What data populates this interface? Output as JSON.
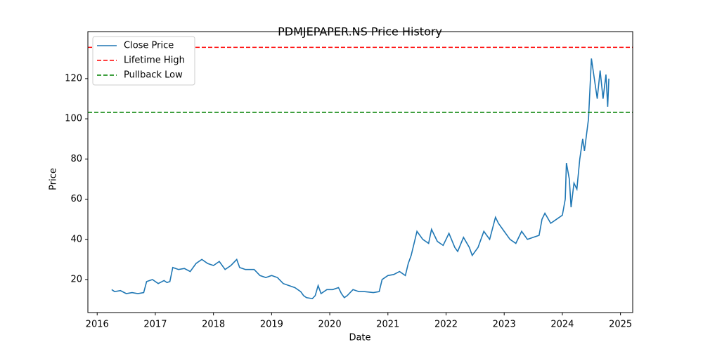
{
  "chart_data": {
    "type": "line",
    "title": "PDMJEPAPER.NS Price History",
    "x_label": "Date",
    "y_label": "Price",
    "x": [
      2016.25,
      2016.3,
      2016.4,
      2016.5,
      2016.6,
      2016.7,
      2016.8,
      2016.85,
      2016.95,
      2017.05,
      2017.15,
      2017.2,
      2017.25,
      2017.3,
      2017.4,
      2017.5,
      2017.6,
      2017.7,
      2017.8,
      2017.9,
      2018.0,
      2018.1,
      2018.2,
      2018.3,
      2018.4,
      2018.45,
      2018.55,
      2018.7,
      2018.8,
      2018.9,
      2019.0,
      2019.1,
      2019.2,
      2019.3,
      2019.4,
      2019.5,
      2019.55,
      2019.6,
      2019.7,
      2019.75,
      2019.8,
      2019.85,
      2019.95,
      2020.05,
      2020.15,
      2020.2,
      2020.25,
      2020.3,
      2020.4,
      2020.5,
      2020.6,
      2020.75,
      2020.85,
      2020.9,
      2021.0,
      2021.1,
      2021.2,
      2021.3,
      2021.35,
      2021.4,
      2021.45,
      2021.5,
      2021.6,
      2021.7,
      2021.75,
      2021.85,
      2021.95,
      2022.05,
      2022.15,
      2022.2,
      2022.3,
      2022.4,
      2022.45,
      2022.55,
      2022.65,
      2022.75,
      2022.85,
      2022.9,
      2023.0,
      2023.1,
      2023.2,
      2023.3,
      2023.4,
      2023.5,
      2023.6,
      2023.65,
      2023.7,
      2023.8,
      2023.9,
      2024.0,
      2024.05,
      2024.07,
      2024.12,
      2024.15,
      2024.2,
      2024.25,
      2024.3,
      2024.35,
      2024.38,
      2024.45,
      2024.5,
      2024.55,
      2024.6,
      2024.65,
      2024.7,
      2024.75,
      2024.78,
      2024.8
    ],
    "series": [
      {
        "name": "Close Price",
        "color": "#1f77b4",
        "values": [
          15,
          14,
          14.5,
          13,
          13.5,
          13,
          13.5,
          19,
          20,
          18,
          19.5,
          18.5,
          19,
          26,
          25,
          25.5,
          24,
          28,
          30,
          28,
          27,
          29,
          25,
          27,
          30,
          26,
          25,
          25,
          22,
          21,
          22,
          21,
          18,
          17,
          16,
          14,
          12,
          11,
          10.5,
          12,
          17,
          13,
          15,
          15,
          16,
          13,
          11,
          12,
          15,
          14,
          14,
          13.5,
          14,
          20,
          22,
          22.5,
          24,
          22,
          28,
          32,
          38,
          44,
          40,
          38,
          45,
          39,
          37,
          43,
          36,
          34,
          41,
          36,
          32,
          36,
          44,
          40,
          51,
          48,
          44,
          40,
          38,
          44,
          40,
          41,
          42,
          50,
          53,
          48,
          50,
          52,
          60,
          78,
          70,
          56,
          68,
          65,
          80,
          90,
          84,
          100,
          130,
          120,
          110,
          124,
          110,
          122,
          106,
          120
        ]
      }
    ],
    "reference_lines": [
      {
        "name": "Lifetime High",
        "color": "#ff0000",
        "value": 135.6
      },
      {
        "name": "Pullback Low",
        "color": "#008000",
        "value": 103.2
      }
    ],
    "xlim": [
      2015.84,
      2025.21
    ],
    "xticks": [
      2016,
      2017,
      2018,
      2019,
      2020,
      2021,
      2022,
      2023,
      2024,
      2025
    ],
    "ylim": [
      3.57,
      143.4
    ],
    "yticks": [
      20,
      40,
      60,
      80,
      100,
      120
    ],
    "legend": "upper left",
    "grid": false
  }
}
